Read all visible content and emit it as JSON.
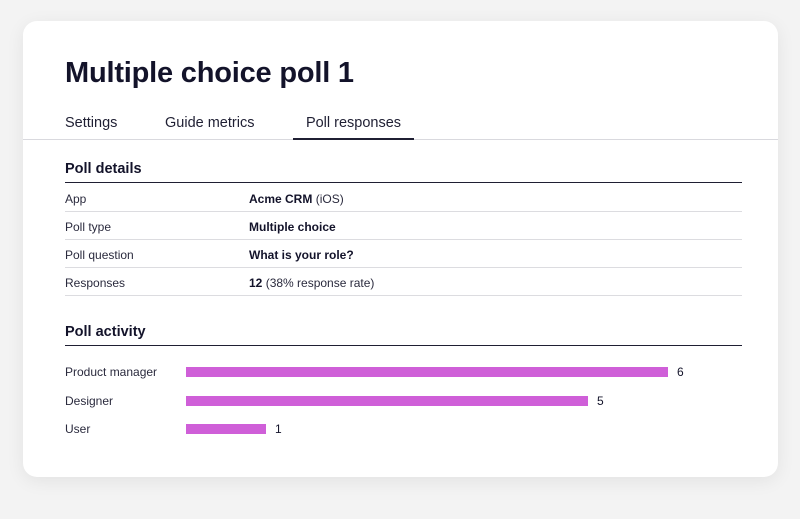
{
  "header": {
    "title": "Multiple choice poll 1"
  },
  "tabs": [
    {
      "label": "Settings",
      "active": false
    },
    {
      "label": "Guide metrics",
      "active": false
    },
    {
      "label": "Poll responses",
      "active": true
    }
  ],
  "poll_details": {
    "heading": "Poll details",
    "rows": [
      {
        "label": "App",
        "value_bold": "Acme CRM",
        "value_rest": " (iOS)"
      },
      {
        "label": "Poll type",
        "value_bold": "Multiple choice",
        "value_rest": ""
      },
      {
        "label": "Poll question",
        "value_bold": "What is your role?",
        "value_rest": ""
      },
      {
        "label": "Responses",
        "value_bold": "12",
        "value_rest": " (38% response rate)"
      }
    ]
  },
  "poll_activity": {
    "heading": "Poll activity",
    "bar_color": "#cf5fd8",
    "max_value": 6,
    "bars": [
      {
        "label": "Product manager",
        "value": 6
      },
      {
        "label": "Designer",
        "value": 5
      },
      {
        "label": "User",
        "value": 1
      }
    ]
  }
}
